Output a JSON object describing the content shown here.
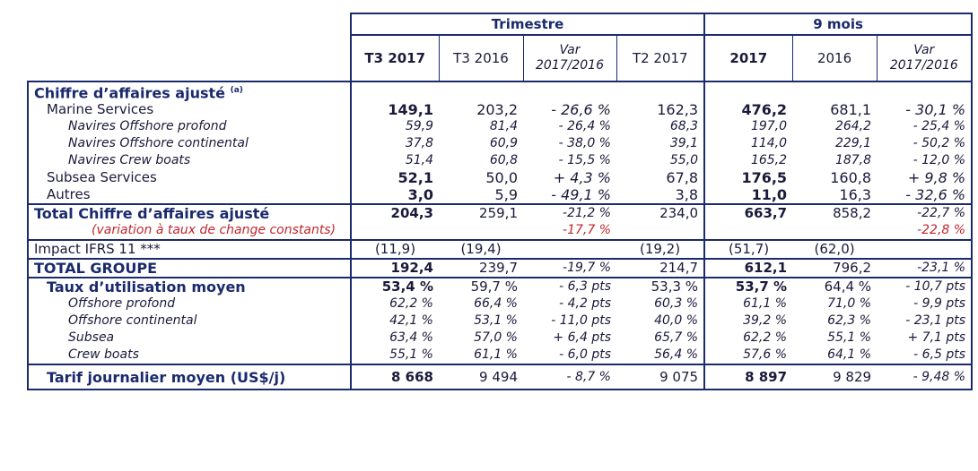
{
  "groups": {
    "trimestre": "Trimestre",
    "neuf_mois": "9 mois"
  },
  "columns": [
    "T3 2017",
    "T3 2016",
    "Var 2017/2016",
    "T2 2017",
    "2017",
    "2016",
    "Var 2017/2016"
  ],
  "col_var_line1": "Var",
  "col_var_line2": "2017/2016",
  "section_revenue_label": "Chiffre d’affaires ajusté",
  "section_revenue_note": "(a)",
  "rows_revenue": [
    {
      "label": "Marine Services",
      "values": [
        "149,1",
        "203,2",
        "- 26,6 %",
        "162,3",
        "476,2",
        "681,1",
        "- 30,1 %"
      ],
      "style": "main"
    },
    {
      "label": "Navires Offshore profond",
      "values": [
        "59,9",
        "81,4",
        "- 26,4 %",
        "68,3",
        "197,0",
        "264,2",
        "- 25,4 %"
      ],
      "style": "sub"
    },
    {
      "label": "Navires Offshore continental",
      "values": [
        "37,8",
        "60,9",
        "- 38,0 %",
        "39,1",
        "114,0",
        "229,1",
        "- 50,2 %"
      ],
      "style": "sub"
    },
    {
      "label": "Navires Crew boats",
      "values": [
        "51,4",
        "60,8",
        "- 15,5 %",
        "55,0",
        "165,2",
        "187,8",
        "- 12,0 %"
      ],
      "style": "sub"
    },
    {
      "label": "Subsea Services",
      "values": [
        "52,1",
        "50,0",
        "+ 4,3 %",
        "67,8",
        "176,5",
        "160,8",
        "+ 9,8 %"
      ],
      "style": "main"
    },
    {
      "label": "Autres",
      "values": [
        "3,0",
        "5,9",
        "- 49,1 %",
        "3,8",
        "11,0",
        "16,3",
        "- 32,6 %"
      ],
      "style": "main"
    }
  ],
  "total_adj": {
    "label": "Total Chiffre d’affaires ajusté",
    "values": [
      "204,3",
      "259,1",
      "-21,2 %",
      "234,0",
      "663,7",
      "858,2",
      "-22,7 %"
    ]
  },
  "constant_fx": {
    "label": "(variation à taux de change constants)",
    "var_q": "-17,7 %",
    "var_9m": "-22,8 %"
  },
  "ifrs": {
    "label": "Impact IFRS 11 ***",
    "values": [
      "(11,9)",
      "(19,4)",
      "",
      "(19,2)",
      "(51,7)",
      "(62,0)",
      ""
    ]
  },
  "total_groupe": {
    "label": "TOTAL GROUPE",
    "values": [
      "192,4",
      "239,7",
      "-19,7 %",
      "214,7",
      "612,1",
      "796,2",
      "-23,1 %"
    ]
  },
  "utilisation": {
    "label": "Taux d’utilisation moyen",
    "values": [
      "53,4 %",
      "59,7 %",
      "- 6,3 pts",
      "53,3 %",
      "53,7 %",
      "64,4 %",
      "- 10,7 pts"
    ]
  },
  "rows_utilisation": [
    {
      "label": "Offshore profond",
      "values": [
        "62,2 %",
        "66,4 %",
        "- 4,2 pts",
        "60,3 %",
        "61,1 %",
        "71,0 %",
        "- 9,9 pts"
      ]
    },
    {
      "label": "Offshore continental",
      "values": [
        "42,1 %",
        "53,1 %",
        "- 11,0 pts",
        "40,0 %",
        "39,2 %",
        "62,3 %",
        "- 23,1 pts"
      ]
    },
    {
      "label": "Subsea",
      "values": [
        "63,4 %",
        "57,0 %",
        "+ 6,4 pts",
        "65,7 %",
        "62,2 %",
        "55,1 %",
        "+ 7,1 pts"
      ]
    },
    {
      "label": "Crew boats",
      "values": [
        "55,1 %",
        "61,1 %",
        "- 6,0 pts",
        "56,4 %",
        "57,6 %",
        "64,1 %",
        "- 6,5 pts"
      ]
    }
  ],
  "tarif": {
    "label": "Tarif journalier moyen (US$/j)",
    "values": [
      "8 668",
      "9 494",
      "- 8,7 %",
      "9 075",
      "8 897",
      "9 829",
      "- 9,48 %"
    ]
  }
}
